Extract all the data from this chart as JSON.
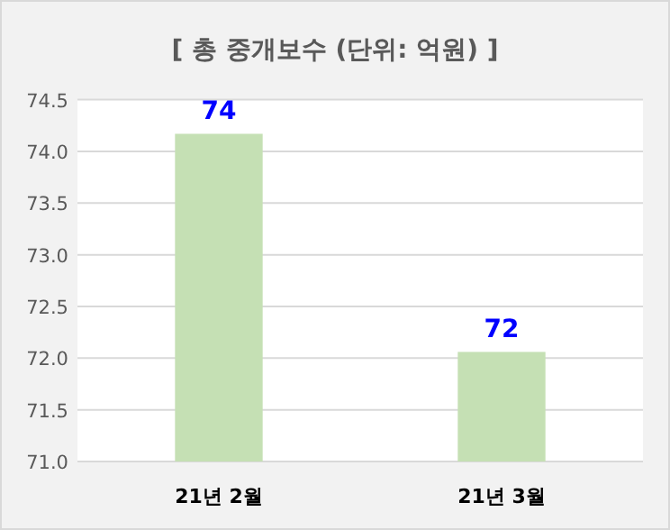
{
  "chart_data": {
    "type": "bar",
    "title": "[ 총 중개보수 (단위: 억원) ]",
    "categories": [
      "21년 2월",
      "21년 3월"
    ],
    "values": [
      74.17,
      72.06
    ],
    "color": "#c5e0b4",
    "value_labels": [
      "74",
      "72"
    ],
    "ylim": [
      71,
      74.5
    ],
    "yticks": [
      {
        "value": 71,
        "label": "71.0"
      },
      {
        "value": 71.5,
        "label": "71.5"
      },
      {
        "value": 72,
        "label": "72.0"
      },
      {
        "value": 72.5,
        "label": "72.5"
      },
      {
        "value": 73,
        "label": "73.0"
      },
      {
        "value": 73.5,
        "label": "73.5"
      },
      {
        "value": 74,
        "label": "74.0"
      },
      {
        "value": 74.5,
        "label": "74.5"
      }
    ],
    "grid": "y"
  }
}
